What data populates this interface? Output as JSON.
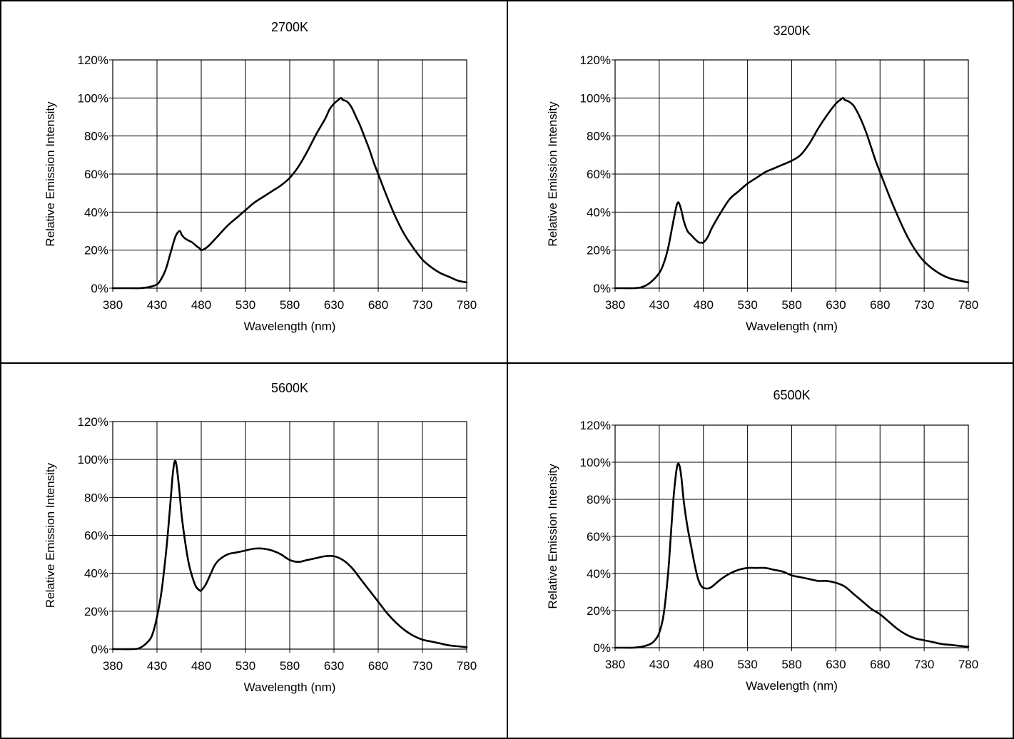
{
  "chart_data": [
    {
      "type": "line",
      "title": "2700K",
      "xlabel": "Wavelength (nm)",
      "ylabel": "Relative Emission Intensity",
      "xlim": [
        380,
        780
      ],
      "ylim": [
        0,
        120
      ],
      "xticks": [
        "380",
        "430",
        "480",
        "530",
        "580",
        "630",
        "680",
        "730",
        "780"
      ],
      "yticks": [
        "0%",
        "20%",
        "40%",
        "60%",
        "80%",
        "100%",
        "120%"
      ],
      "grid": true,
      "series": [
        {
          "x": [
            380,
            400,
            410,
            420,
            430,
            435,
            440,
            445,
            450,
            453,
            456,
            458,
            462,
            466,
            470,
            475,
            478,
            480,
            485,
            490,
            500,
            510,
            520,
            530,
            540,
            550,
            560,
            570,
            580,
            590,
            600,
            610,
            620,
            625,
            630,
            635,
            638,
            640,
            645,
            650,
            655,
            660,
            665,
            670,
            675,
            680,
            690,
            700,
            710,
            720,
            730,
            740,
            750,
            760,
            770,
            780
          ],
          "y": [
            0,
            0,
            0,
            0.5,
            2,
            5,
            10,
            18,
            26,
            29,
            30,
            28,
            26,
            25,
            24,
            22,
            21,
            20,
            21,
            23,
            28,
            33,
            37,
            41,
            45,
            48,
            51,
            54,
            58,
            64,
            72,
            81,
            89,
            94,
            97,
            99,
            100,
            99,
            98,
            95,
            90,
            85,
            79,
            73,
            66,
            60,
            48,
            37,
            28,
            21,
            15,
            11,
            8,
            6,
            4,
            3
          ]
        }
      ]
    },
    {
      "type": "line",
      "title": "3200K",
      "xlabel": "Wavelength (nm)",
      "ylabel": "Relative Emission Intensity",
      "xlim": [
        380,
        780
      ],
      "ylim": [
        0,
        120
      ],
      "xticks": [
        "380",
        "430",
        "480",
        "530",
        "580",
        "630",
        "680",
        "730",
        "780"
      ],
      "yticks": [
        "0%",
        "20%",
        "40%",
        "60%",
        "80%",
        "100%",
        "120%"
      ],
      "grid": true,
      "series": [
        {
          "x": [
            380,
            390,
            400,
            410,
            420,
            430,
            435,
            440,
            445,
            448,
            450,
            452,
            455,
            458,
            462,
            466,
            470,
            475,
            478,
            480,
            485,
            490,
            500,
            510,
            520,
            530,
            540,
            550,
            560,
            570,
            580,
            590,
            600,
            610,
            620,
            630,
            635,
            638,
            640,
            645,
            650,
            655,
            660,
            665,
            670,
            675,
            680,
            690,
            700,
            710,
            720,
            730,
            740,
            750,
            760,
            770,
            780
          ],
          "y": [
            0,
            0,
            0,
            0.5,
            3,
            8,
            13,
            21,
            33,
            40,
            44,
            45,
            41,
            35,
            30,
            28,
            26,
            24,
            24,
            24,
            27,
            32,
            40,
            47,
            51,
            55,
            58,
            61,
            63,
            65,
            67,
            70,
            76,
            84,
            91,
            97,
            99,
            100,
            99,
            98,
            96,
            92,
            87,
            81,
            74,
            67,
            61,
            49,
            38,
            28,
            20,
            14,
            10,
            7,
            5,
            4,
            3
          ]
        }
      ]
    },
    {
      "type": "line",
      "title": "5600K",
      "xlabel": "Wavelength (nm)",
      "ylabel": "Relative Emission Intensity",
      "xlim": [
        380,
        780
      ],
      "ylim": [
        0,
        120
      ],
      "xticks": [
        "380",
        "430",
        "480",
        "530",
        "580",
        "630",
        "680",
        "730",
        "780"
      ],
      "yticks": [
        "0%",
        "20%",
        "40%",
        "60%",
        "80%",
        "100%",
        "120%"
      ],
      "grid": true,
      "series": [
        {
          "x": [
            380,
            390,
            400,
            410,
            420,
            425,
            430,
            435,
            440,
            443,
            446,
            448,
            450,
            452,
            455,
            458,
            462,
            466,
            470,
            474,
            478,
            480,
            485,
            490,
            495,
            500,
            510,
            520,
            530,
            540,
            550,
            560,
            570,
            580,
            590,
            600,
            610,
            620,
            630,
            640,
            650,
            660,
            670,
            680,
            690,
            700,
            710,
            720,
            730,
            740,
            750,
            760,
            770,
            780
          ],
          "y": [
            0,
            0,
            0,
            0.5,
            4,
            8,
            17,
            30,
            50,
            65,
            82,
            93,
            99,
            97,
            85,
            70,
            56,
            45,
            38,
            33,
            31,
            31,
            34,
            39,
            44,
            47,
            50,
            51,
            52,
            53,
            53,
            52,
            50,
            47,
            46,
            47,
            48,
            49,
            49,
            47,
            43,
            37,
            31,
            25,
            19,
            14,
            10,
            7,
            5,
            4,
            3,
            2,
            1.5,
            1
          ]
        }
      ]
    },
    {
      "type": "line",
      "title": "6500K",
      "xlabel": "Wavelength (nm)",
      "ylabel": "Relative Emission Intensity",
      "xlim": [
        380,
        780
      ],
      "ylim": [
        0,
        120
      ],
      "xticks": [
        "380",
        "430",
        "480",
        "530",
        "580",
        "630",
        "680",
        "730",
        "780"
      ],
      "yticks": [
        "0%",
        "20%",
        "40%",
        "60%",
        "80%",
        "100%",
        "120%"
      ],
      "grid": true,
      "series": [
        {
          "x": [
            380,
            390,
            400,
            410,
            420,
            425,
            430,
            435,
            440,
            443,
            446,
            449,
            451,
            453,
            455,
            458,
            462,
            466,
            470,
            474,
            478,
            482,
            486,
            490,
            500,
            510,
            520,
            530,
            540,
            550,
            560,
            570,
            580,
            590,
            600,
            610,
            620,
            630,
            640,
            650,
            660,
            670,
            680,
            690,
            700,
            710,
            720,
            730,
            740,
            750,
            760,
            770,
            780
          ],
          "y": [
            0,
            0,
            0,
            0.5,
            2,
            4,
            8,
            18,
            40,
            60,
            80,
            94,
            99,
            98,
            92,
            78,
            65,
            55,
            45,
            37,
            33,
            32,
            32,
            33,
            37,
            40,
            42,
            43,
            43,
            43,
            42,
            41,
            39,
            38,
            37,
            36,
            36,
            35,
            33,
            29,
            25,
            21,
            18,
            14,
            10,
            7,
            5,
            4,
            3,
            2,
            1.5,
            1,
            0.5
          ]
        }
      ]
    }
  ]
}
